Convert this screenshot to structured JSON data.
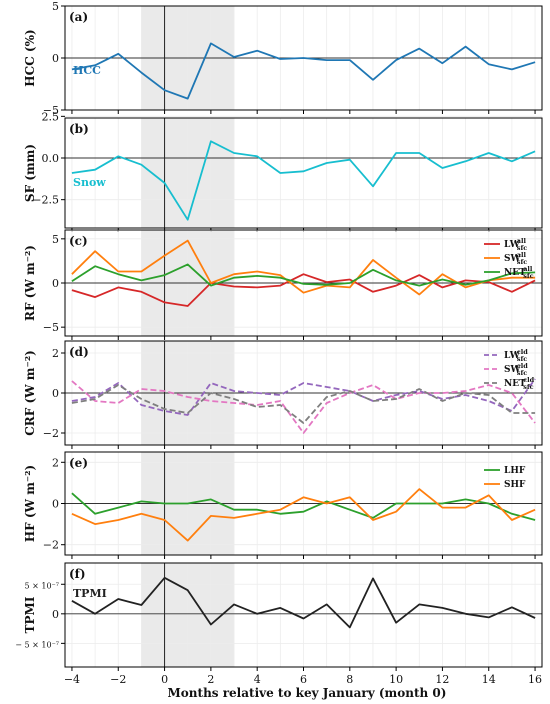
{
  "colors": {
    "hcc": "#1f77b4",
    "snow": "#17becf",
    "lw": "#d62728",
    "sw": "#ff7f0e",
    "net": "#2ca02c",
    "lw_cld": "#9467bd",
    "sw_cld": "#e377c2",
    "net_cld": "#7f7f7f",
    "lhf": "#2ca02c",
    "shf": "#ff7f0e",
    "tpmi": "#222222",
    "shade": "#d9d9d9"
  },
  "chart_data": [
    {
      "type": "line",
      "panel_label": "(a)",
      "ylabel": "HCC (%)",
      "ylim": [
        -5,
        5
      ],
      "yticks": [
        -5,
        0,
        5
      ],
      "ytick_labels": [
        "−5",
        "0",
        "5"
      ],
      "x": [
        -4,
        -3,
        -2,
        -1,
        0,
        1,
        2,
        3,
        4,
        5,
        6,
        7,
        8,
        9,
        10,
        11,
        12,
        13,
        14,
        15,
        16
      ],
      "shaded_x": [
        -1,
        3
      ],
      "vline_x": 0,
      "series": [
        {
          "name": "HCC",
          "style": "solid",
          "color": "#1f77b4",
          "values": [
            -1.1,
            -0.7,
            0.4,
            -1.4,
            -3.1,
            -3.9,
            1.4,
            0.1,
            0.7,
            -0.1,
            0.0,
            -0.2,
            -0.2,
            -2.1,
            -0.2,
            0.9,
            -0.5,
            1.1,
            -0.6,
            -1.1,
            -0.4
          ]
        }
      ],
      "inline_label": "HCC"
    },
    {
      "type": "line",
      "panel_label": "(b)",
      "ylabel": "SF (mm)",
      "ylim": [
        -4.2,
        2.4
      ],
      "yticks": [
        -2.5,
        0.0,
        2.5
      ],
      "ytick_labels": [
        "−2.5",
        "0.0",
        "2.5"
      ],
      "x": [
        -4,
        -3,
        -2,
        -1,
        0,
        1,
        2,
        3,
        4,
        5,
        6,
        7,
        8,
        9,
        10,
        11,
        12,
        13,
        14,
        15,
        16
      ],
      "shaded_x": [
        -1,
        3
      ],
      "vline_x": 0,
      "series": [
        {
          "name": "Snow",
          "style": "solid",
          "color": "#17becf",
          "values": [
            -0.9,
            -0.7,
            0.1,
            -0.4,
            -1.5,
            -3.7,
            1.0,
            0.3,
            0.1,
            -0.9,
            -0.8,
            -0.3,
            -0.1,
            -1.7,
            0.3,
            0.3,
            -0.6,
            -0.2,
            0.3,
            -0.2,
            0.4
          ]
        }
      ],
      "inline_label": "Snow"
    },
    {
      "type": "line",
      "panel_label": "(c)",
      "ylabel": "RF (W m⁻²)",
      "ylim": [
        -6,
        6
      ],
      "yticks": [
        -5,
        0,
        5
      ],
      "ytick_labels": [
        "−5",
        "0",
        "5"
      ],
      "x": [
        -4,
        -3,
        -2,
        -1,
        0,
        1,
        2,
        3,
        4,
        5,
        6,
        7,
        8,
        9,
        10,
        11,
        12,
        13,
        14,
        15,
        16
      ],
      "shaded_x": [
        -1,
        3
      ],
      "vline_x": 0,
      "legend_position": "upper-right",
      "series": [
        {
          "name": "LW",
          "sup": "all",
          "sub": "sfc",
          "style": "solid",
          "color": "#d62728",
          "values": [
            -0.8,
            -1.6,
            -0.5,
            -1.0,
            -2.2,
            -2.6,
            0.0,
            -0.4,
            -0.5,
            -0.3,
            1.0,
            0.1,
            0.4,
            -1.0,
            -0.3,
            0.9,
            -0.5,
            0.3,
            0.1,
            -1.0,
            0.3
          ]
        },
        {
          "name": "SW",
          "sup": "all",
          "sub": "sfc",
          "style": "solid",
          "color": "#ff7f0e",
          "values": [
            1.0,
            3.6,
            1.3,
            1.3,
            3.1,
            4.8,
            0.0,
            1.0,
            1.3,
            0.9,
            -1.1,
            -0.3,
            -0.5,
            2.6,
            0.6,
            -1.3,
            1.0,
            -0.5,
            0.3,
            0.6,
            0.6
          ]
        },
        {
          "name": "NET",
          "sup": "all",
          "sub": "sfc",
          "style": "solid",
          "color": "#2ca02c",
          "values": [
            0.2,
            1.9,
            1.0,
            0.3,
            0.9,
            2.1,
            -0.3,
            0.6,
            0.8,
            0.6,
            -0.1,
            -0.2,
            0.0,
            1.5,
            0.3,
            -0.3,
            0.4,
            -0.2,
            0.3,
            1.1,
            1.2
          ]
        }
      ]
    },
    {
      "type": "line",
      "panel_label": "(d)",
      "ylabel": "CRF (W m⁻²)",
      "ylim": [
        -2.6,
        2.6
      ],
      "yticks": [
        -2,
        0,
        2
      ],
      "ytick_labels": [
        "−2",
        "0",
        "2"
      ],
      "x": [
        -4,
        -3,
        -2,
        -1,
        0,
        1,
        2,
        3,
        4,
        5,
        6,
        7,
        8,
        9,
        10,
        11,
        12,
        13,
        14,
        15,
        16
      ],
      "shaded_x": [
        -1,
        3
      ],
      "vline_x": 0,
      "legend_position": "upper-right",
      "series": [
        {
          "name": "LW",
          "sup": "cld",
          "sub": "sfc",
          "style": "dashed",
          "color": "#9467bd",
          "values": [
            -0.4,
            -0.2,
            0.5,
            -0.6,
            -0.9,
            -1.1,
            0.5,
            0.1,
            0.0,
            -0.1,
            0.5,
            0.3,
            0.1,
            -0.4,
            -0.1,
            0.1,
            -0.3,
            -0.1,
            -0.4,
            -0.9,
            0.7
          ]
        },
        {
          "name": "SW",
          "sup": "cld",
          "sub": "sfc",
          "style": "dashed",
          "color": "#e377c2",
          "values": [
            0.6,
            -0.4,
            -0.5,
            0.2,
            0.1,
            -0.2,
            -0.4,
            -0.5,
            -0.6,
            -0.4,
            -2.0,
            -0.5,
            0.0,
            0.4,
            -0.3,
            0.0,
            0.0,
            0.1,
            0.4,
            0.0,
            -1.5
          ]
        },
        {
          "name": "NET",
          "sup": "cld",
          "sub": "sfc",
          "style": "dashed",
          "color": "#7f7f7f",
          "values": [
            -0.5,
            -0.3,
            0.4,
            -0.3,
            -0.8,
            -1.0,
            0.0,
            -0.3,
            -0.7,
            -0.6,
            -1.5,
            -0.2,
            0.1,
            -0.4,
            -0.3,
            0.2,
            -0.4,
            0.0,
            -0.1,
            -1.0,
            -1.0
          ]
        }
      ]
    },
    {
      "type": "line",
      "panel_label": "(e)",
      "ylabel": "HF (W m⁻²)",
      "ylim": [
        -2.5,
        2.5
      ],
      "yticks": [
        -2,
        0,
        2
      ],
      "ytick_labels": [
        "−2",
        "0",
        "2"
      ],
      "x": [
        -4,
        -3,
        -2,
        -1,
        0,
        1,
        2,
        3,
        4,
        5,
        6,
        7,
        8,
        9,
        10,
        11,
        12,
        13,
        14,
        15,
        16
      ],
      "shaded_x": [
        -1,
        3
      ],
      "vline_x": 0,
      "legend_position": "upper-right",
      "series": [
        {
          "name": "LHF",
          "style": "solid",
          "color": "#2ca02c",
          "values": [
            0.5,
            -0.5,
            -0.2,
            0.1,
            0.0,
            0.0,
            0.2,
            -0.3,
            -0.3,
            -0.5,
            -0.4,
            0.1,
            -0.3,
            -0.7,
            0.0,
            0.0,
            0.0,
            0.2,
            0.0,
            -0.5,
            -0.8
          ]
        },
        {
          "name": "SHF",
          "style": "solid",
          "color": "#ff7f0e",
          "values": [
            -0.5,
            -1.0,
            -0.8,
            -0.5,
            -0.8,
            -1.8,
            -0.6,
            -0.7,
            -0.5,
            -0.3,
            0.3,
            0.0,
            0.3,
            -0.8,
            -0.4,
            0.7,
            -0.2,
            -0.2,
            0.4,
            -0.8,
            -0.3
          ]
        }
      ]
    },
    {
      "type": "line",
      "panel_label": "(f)",
      "ylabel": "TPMI",
      "ylim": [
        -9e-07,
        8.6e-07
      ],
      "yticks": [
        -5e-07,
        0,
        5e-07
      ],
      "ytick_labels": [
        "− 5 × 10⁻⁷",
        "0",
        "5 × 10⁻⁷"
      ],
      "x": [
        -4,
        -3,
        -2,
        -1,
        0,
        1,
        2,
        3,
        4,
        5,
        6,
        7,
        8,
        9,
        10,
        11,
        12,
        13,
        14,
        15,
        16
      ],
      "shaded_x": [
        -1,
        3
      ],
      "vline_x": 0,
      "series": [
        {
          "name": "TPMI",
          "style": "solid",
          "color": "#222222",
          "values": [
            2.2e-07,
            0.0,
            2.5e-07,
            1.5e-07,
            6.1e-07,
            4e-07,
            -1.8e-07,
            1.6e-07,
            0.0,
            1e-07,
            -8e-08,
            1.6e-07,
            -2.3e-07,
            6e-07,
            -1.5e-07,
            1.6e-07,
            1e-07,
            0.0,
            -6e-08,
            1.1e-07,
            -7e-08
          ]
        }
      ],
      "inline_label": "TPMI"
    }
  ],
  "xaxis": {
    "label": "Months relative to key January (month 0)",
    "ticks": [
      -4,
      -2,
      0,
      2,
      4,
      6,
      8,
      10,
      12,
      14,
      16
    ],
    "tick_labels": [
      "−4",
      "−2",
      "0",
      "2",
      "4",
      "6",
      "8",
      "10",
      "12",
      "14",
      "16"
    ],
    "xlim": [
      -4.3,
      16.3
    ]
  }
}
